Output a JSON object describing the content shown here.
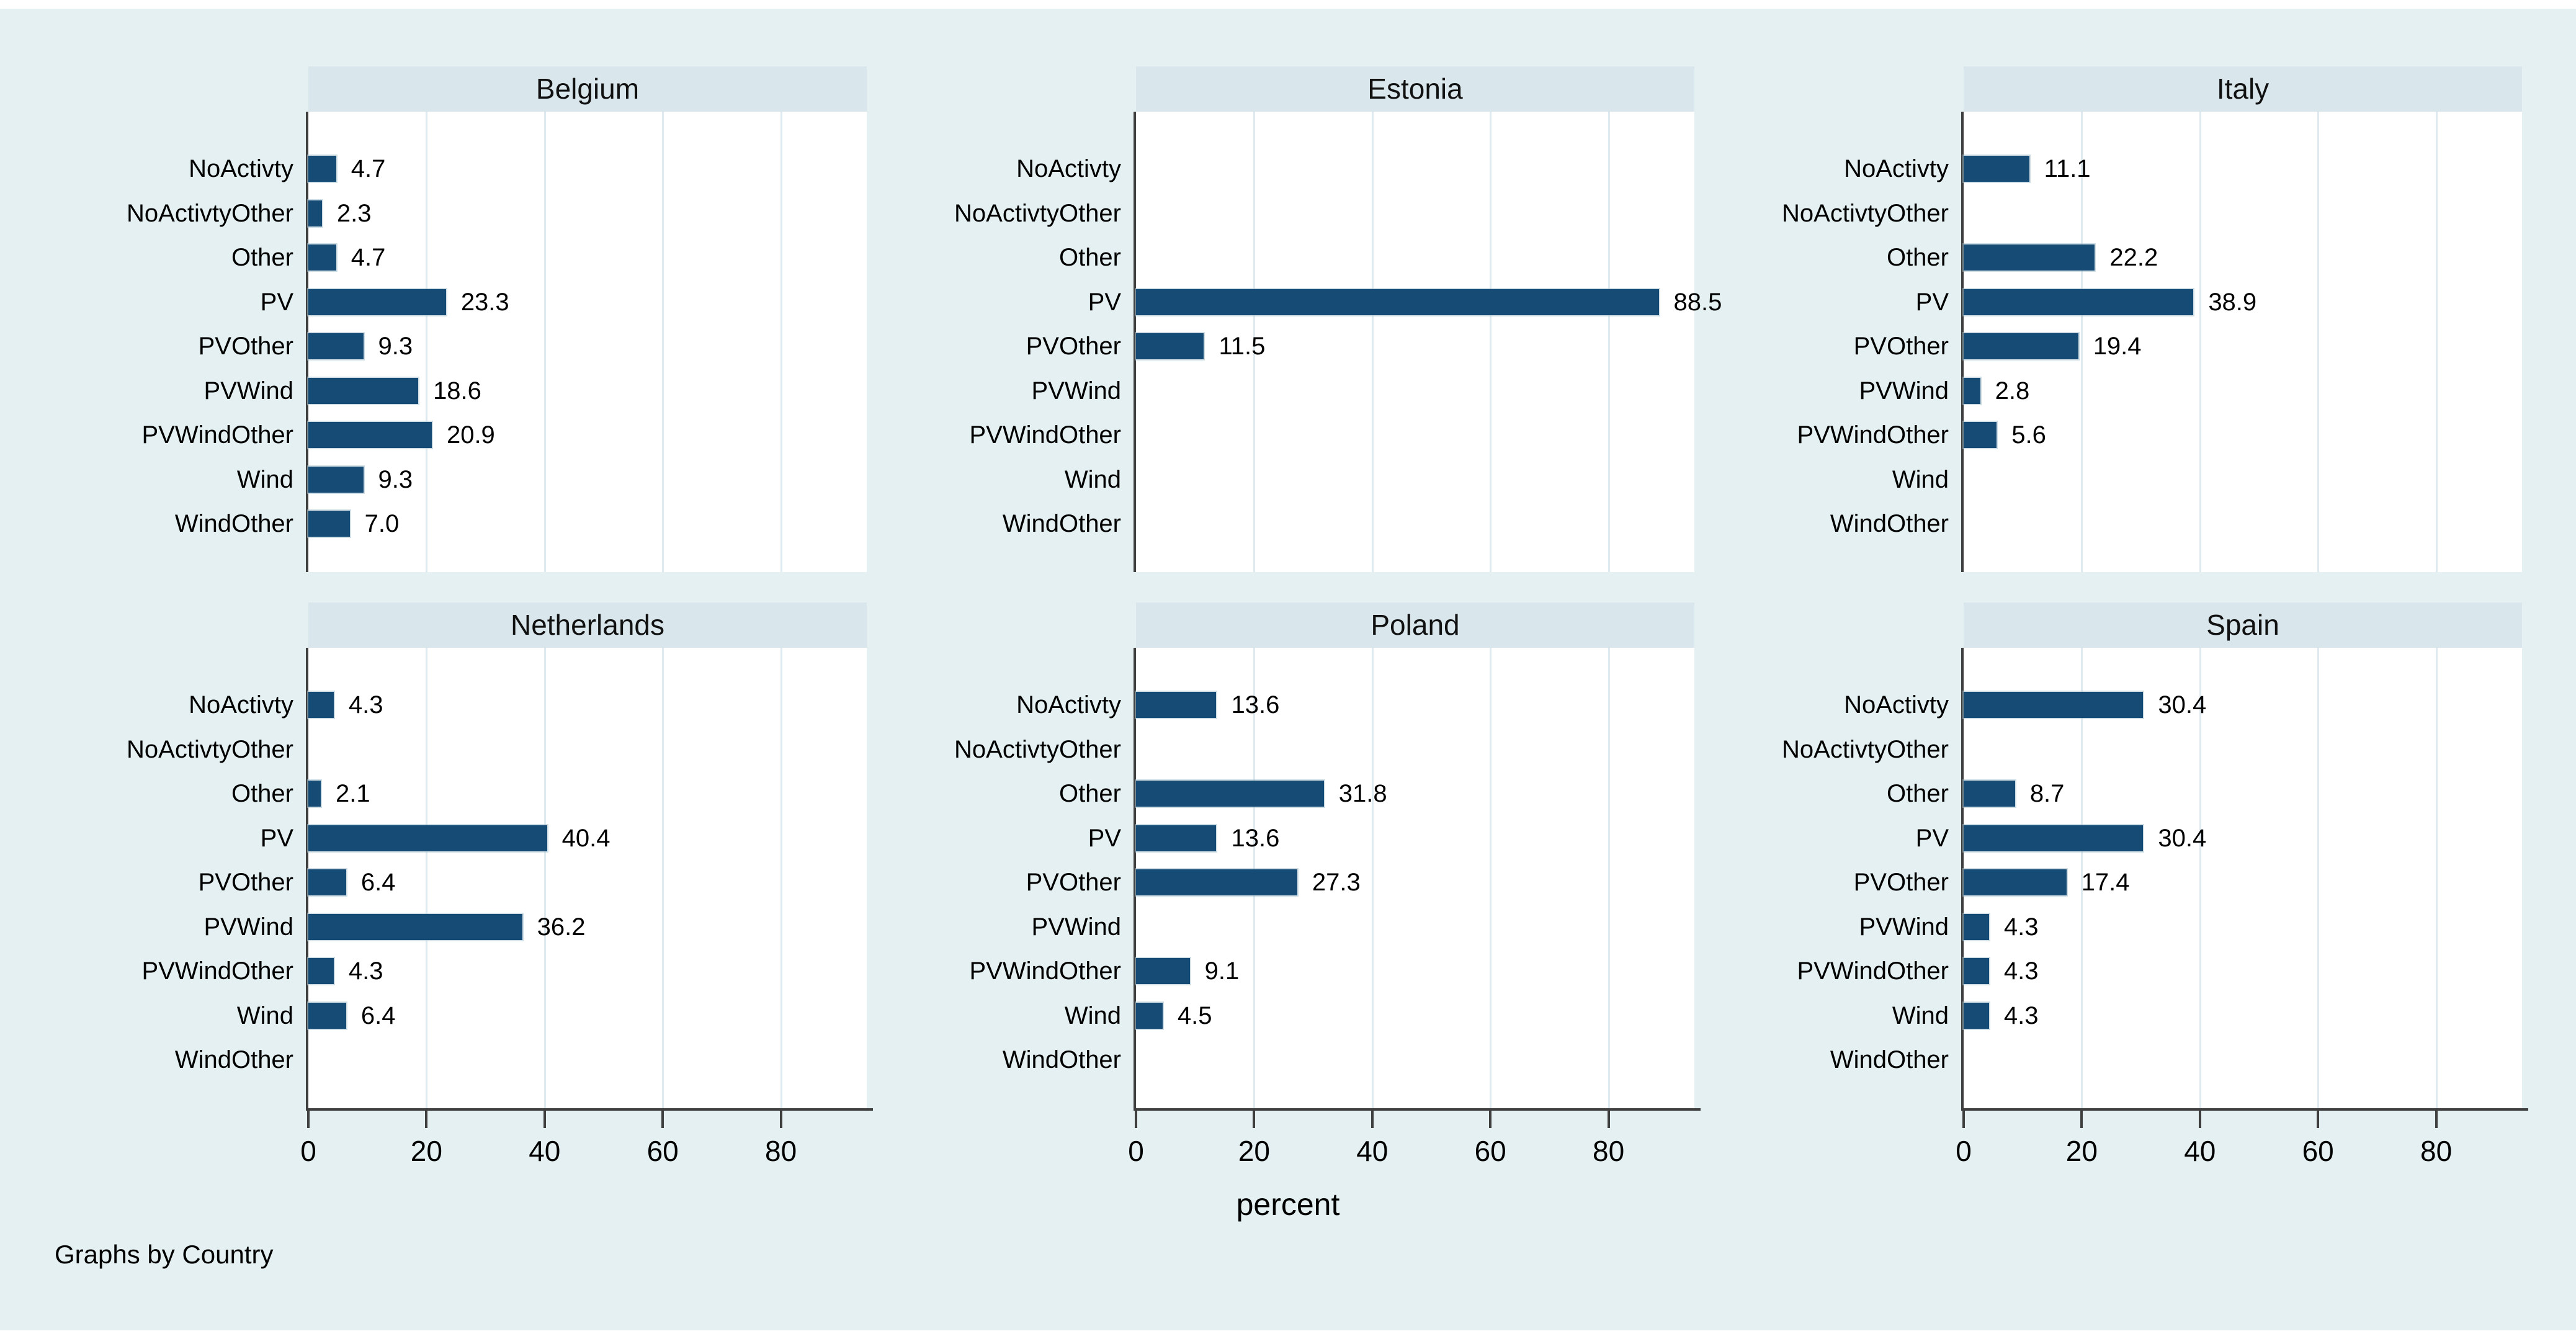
{
  "figure": {
    "xlabel": "percent",
    "note": "Graphs by Country",
    "x_ticks": [
      0,
      20,
      40,
      60,
      80
    ],
    "categories": [
      "NoActivty",
      "NoActivtyOther",
      "Other",
      "PV",
      "PVOther",
      "PVWind",
      "PVWindOther",
      "Wind",
      "WindOther"
    ],
    "panels": [
      {
        "title": "Belgium",
        "values": [
          4.7,
          2.3,
          4.7,
          23.3,
          9.3,
          18.6,
          20.9,
          9.3,
          7.0
        ]
      },
      {
        "title": "Estonia",
        "values": [
          null,
          null,
          null,
          88.5,
          11.5,
          null,
          null,
          null,
          null
        ]
      },
      {
        "title": "Italy",
        "values": [
          11.1,
          null,
          22.2,
          38.9,
          19.4,
          2.8,
          5.6,
          null,
          null
        ]
      },
      {
        "title": "Netherlands",
        "values": [
          4.3,
          null,
          2.1,
          40.4,
          6.4,
          36.2,
          4.3,
          6.4,
          null
        ]
      },
      {
        "title": "Poland",
        "values": [
          13.6,
          null,
          31.8,
          13.6,
          27.3,
          null,
          9.1,
          4.5,
          null
        ]
      },
      {
        "title": "Spain",
        "values": [
          30.4,
          null,
          8.7,
          30.4,
          17.4,
          4.3,
          4.3,
          4.3,
          null
        ]
      }
    ],
    "colors": {
      "figure_bg": "#e4f0f1",
      "strip_bg": "#d9e6eb",
      "bar": "#164b76",
      "grid": "#dfeaf0",
      "axis": "#3f3f3f",
      "text": "#000000"
    }
  },
  "chart_data": {
    "type": "bar",
    "orientation": "horizontal",
    "facet_by": "Country",
    "categories": [
      "NoActivty",
      "NoActivtyOther",
      "Other",
      "PV",
      "PVOther",
      "PVWind",
      "PVWindOther",
      "Wind",
      "WindOther"
    ],
    "series": [
      {
        "name": "Belgium",
        "values": [
          4.7,
          2.3,
          4.7,
          23.3,
          9.3,
          18.6,
          20.9,
          9.3,
          7.0
        ]
      },
      {
        "name": "Estonia",
        "values": [
          null,
          null,
          null,
          88.5,
          11.5,
          null,
          null,
          null,
          null
        ]
      },
      {
        "name": "Italy",
        "values": [
          11.1,
          null,
          22.2,
          38.9,
          19.4,
          2.8,
          5.6,
          null,
          null
        ]
      },
      {
        "name": "Netherlands",
        "values": [
          4.3,
          null,
          2.1,
          40.4,
          6.4,
          36.2,
          4.3,
          6.4,
          null
        ]
      },
      {
        "name": "Poland",
        "values": [
          13.6,
          null,
          31.8,
          13.6,
          27.3,
          null,
          9.1,
          4.5,
          null
        ]
      },
      {
        "name": "Spain",
        "values": [
          30.4,
          null,
          8.7,
          30.4,
          17.4,
          4.3,
          4.3,
          4.3,
          null
        ]
      }
    ],
    "title": "",
    "xlabel": "percent",
    "ylabel": "",
    "xlim": [
      0,
      95
    ],
    "x_ticks": [
      0,
      20,
      40,
      60,
      80
    ],
    "grid": true,
    "value_labels": true,
    "note": "Graphs by Country",
    "layout": "2 rows x 3 columns, x tick labels on bottom row only"
  }
}
